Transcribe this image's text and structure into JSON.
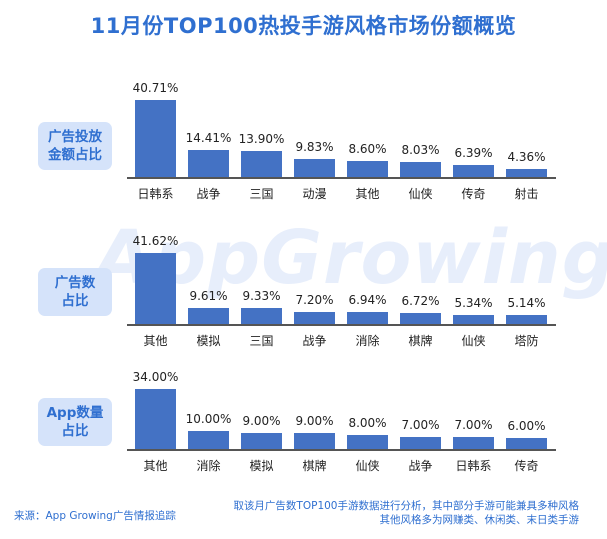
{
  "title": "11月份TOP100热投手游风格市场份额概览",
  "watermark": "AppGrowing",
  "colors": {
    "bar": "#4472c4",
    "accent": "#2f6fd0",
    "label_bg": "#d5e3fa"
  },
  "footer": {
    "source": "来源：App Growing广告情报追踪",
    "note_line1": "取该月广告数TOP100手游数据进行分析，其中部分手游可能兼具多种风格",
    "note_line2": "其他风格多为网赚类、休闲类、末日类手游"
  },
  "chart_data": [
    {
      "type": "bar",
      "panel_label": "广告投放\n金额占比",
      "categories": [
        "日韩系",
        "战争",
        "三国",
        "动漫",
        "其他",
        "仙侠",
        "传奇",
        "射击"
      ],
      "values": [
        40.71,
        14.41,
        13.9,
        9.83,
        8.6,
        8.03,
        6.39,
        4.36
      ],
      "value_labels": [
        "40.71%",
        "14.41%",
        "13.90%",
        "9.83%",
        "8.60%",
        "8.03%",
        "6.39%",
        "4.36%"
      ],
      "unit": "%"
    },
    {
      "type": "bar",
      "panel_label": "广告数\n占比",
      "categories": [
        "其他",
        "模拟",
        "三国",
        "战争",
        "消除",
        "棋牌",
        "仙侠",
        "塔防"
      ],
      "values": [
        41.62,
        9.61,
        9.33,
        7.2,
        6.94,
        6.72,
        5.34,
        5.14
      ],
      "value_labels": [
        "41.62%",
        "9.61%",
        "9.33%",
        "7.20%",
        "6.94%",
        "6.72%",
        "5.34%",
        "5.14%"
      ],
      "unit": "%"
    },
    {
      "type": "bar",
      "panel_label": "App数量\n占比",
      "categories": [
        "其他",
        "消除",
        "模拟",
        "棋牌",
        "仙侠",
        "战争",
        "日韩系",
        "传奇"
      ],
      "values": [
        34.0,
        10.0,
        9.0,
        9.0,
        8.0,
        7.0,
        7.0,
        6.0
      ],
      "value_labels": [
        "34.00%",
        "10.00%",
        "9.00%",
        "9.00%",
        "8.00%",
        "7.00%",
        "7.00%",
        "6.00%"
      ],
      "unit": "%"
    }
  ]
}
